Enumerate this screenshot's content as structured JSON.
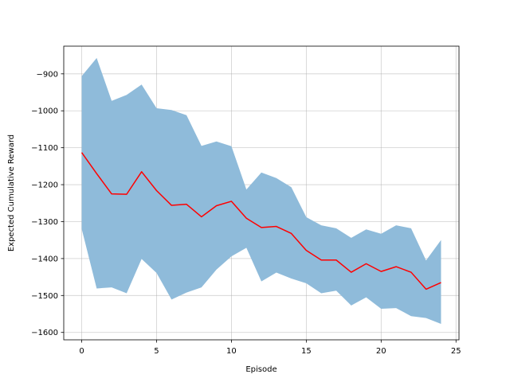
{
  "chart_data": {
    "type": "line",
    "title": "",
    "xlabel": "Episode",
    "ylabel": "Expected Cumulative Reward",
    "xlim": [
      -1.2,
      25.2
    ],
    "ylim": [
      -1620,
      -825
    ],
    "x_ticks": [
      0,
      5,
      10,
      15,
      20,
      25
    ],
    "y_ticks": [
      -900,
      -1000,
      -1100,
      -1200,
      -1300,
      -1400,
      -1500,
      -1600
    ],
    "x_tick_labels": [
      "0",
      "5",
      "10",
      "15",
      "20",
      "25"
    ],
    "y_tick_labels": [
      "−900",
      "−1000",
      "−1100",
      "−1200",
      "−1300",
      "−1400",
      "−1500",
      "−1600"
    ],
    "grid": true,
    "legend": "none",
    "x": [
      0,
      1,
      2,
      3,
      4,
      5,
      6,
      7,
      8,
      9,
      10,
      11,
      12,
      13,
      14,
      15,
      16,
      17,
      18,
      19,
      20,
      21,
      22,
      23,
      24
    ],
    "series": [
      {
        "color": "#ff0000",
        "values": [
          -1113,
          -1170,
          -1225,
          -1226,
          -1165,
          -1216,
          -1256,
          -1253,
          -1287,
          -1257,
          -1245,
          -1291,
          -1316,
          -1313,
          -1332,
          -1378,
          -1404,
          -1404,
          -1437,
          -1414,
          -1435,
          -1422,
          -1437,
          -1483,
          -1465
        ]
      }
    ],
    "band": {
      "color": "#8fbbda",
      "upper": [
        -906,
        -857,
        -973,
        -957,
        -929,
        -993,
        -998,
        -1012,
        -1095,
        -1083,
        -1096,
        -1213,
        -1167,
        -1182,
        -1207,
        -1288,
        -1310,
        -1318,
        -1344,
        -1321,
        -1333,
        -1310,
        -1318,
        -1405,
        -1350
      ],
      "lower": [
        -1320,
        -1481,
        -1478,
        -1494,
        -1401,
        -1439,
        -1511,
        -1492,
        -1478,
        -1430,
        -1394,
        -1371,
        -1462,
        -1438,
        -1454,
        -1467,
        -1494,
        -1487,
        -1527,
        -1505,
        -1536,
        -1534,
        -1556,
        -1561,
        -1577
      ]
    }
  }
}
